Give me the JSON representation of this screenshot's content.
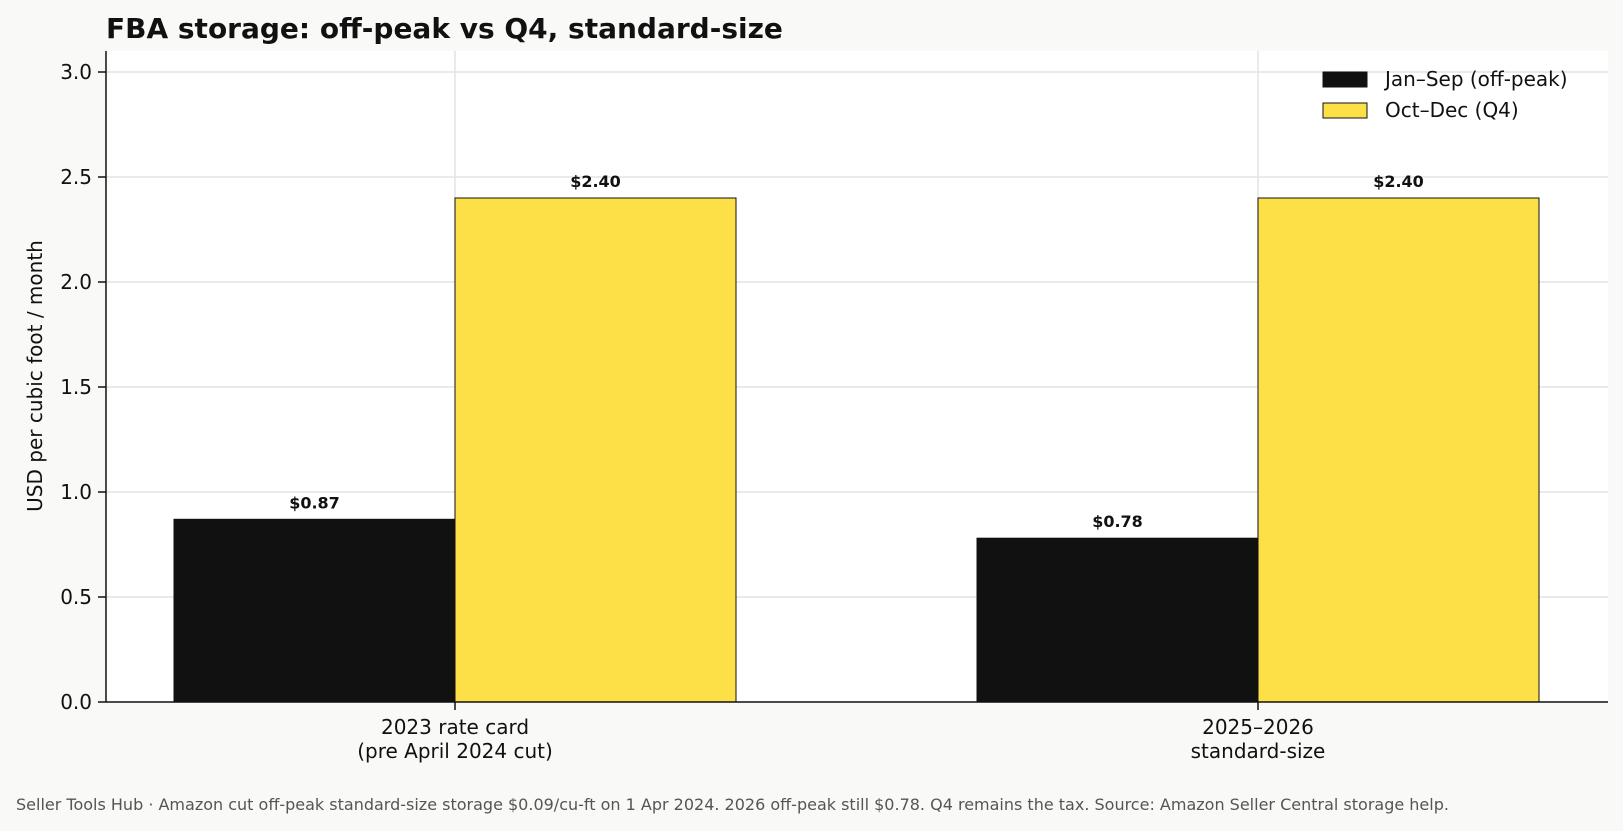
{
  "chart_data": {
    "type": "bar",
    "title": "FBA storage: off-peak vs Q4, standard-size",
    "xlabel": "",
    "ylabel": "USD per cubic foot / month",
    "categories": [
      [
        "2023 rate card",
        "(pre April 2024 cut)"
      ],
      [
        "2025–2026",
        "standard-size"
      ]
    ],
    "series": [
      {
        "name": "Jan–Sep (off-peak)",
        "values": [
          0.87,
          0.78
        ],
        "labels": [
          "$0.87",
          "$0.78"
        ],
        "color": "#111111"
      },
      {
        "name": "Oct–Dec (Q4)",
        "values": [
          2.4,
          2.4
        ],
        "labels": [
          "$2.40",
          "$2.40"
        ],
        "color": "#fde047"
      }
    ],
    "ylim": [
      0,
      3.1
    ],
    "yticks": [
      0.0,
      0.5,
      1.0,
      1.5,
      2.0,
      2.5,
      3.0
    ],
    "ytick_labels": [
      "0.0",
      "0.5",
      "1.0",
      "1.5",
      "2.0",
      "2.5",
      "3.0"
    ],
    "grid": true,
    "legend_position": "top-right"
  },
  "footer": "Seller Tools Hub  ·  Amazon cut off-peak standard-size storage $0.09/cu-ft on 1 Apr 2024. 2026 off-peak still $0.78. Q4 remains the tax. Source: Amazon Seller Central storage help."
}
